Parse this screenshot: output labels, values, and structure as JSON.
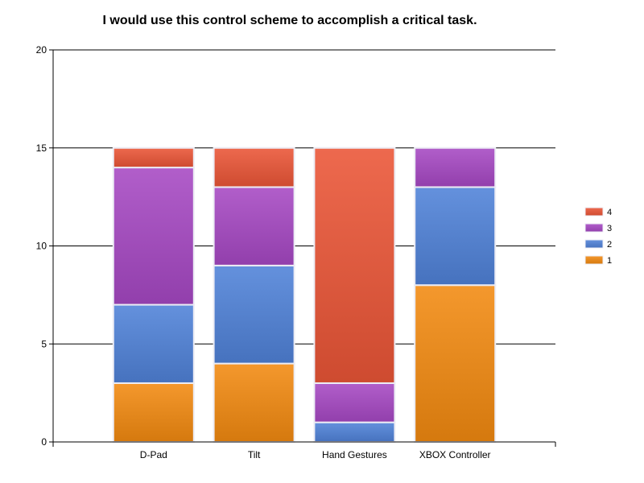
{
  "chart_data": {
    "type": "bar",
    "stacked": true,
    "title": "I would use this control scheme to accomplish a critical task.",
    "xlabel": "",
    "ylabel": "",
    "categories": [
      "D-Pad",
      "Tilt",
      "Hand Gestures",
      "XBOX Controller"
    ],
    "ylim": [
      0,
      20
    ],
    "yticks": [
      0,
      5,
      10,
      15,
      20
    ],
    "grid": true,
    "legend_position": "right",
    "series": [
      {
        "name": "1",
        "color": "#f28a10",
        "values": [
          3,
          4,
          0,
          8
        ]
      },
      {
        "name": "2",
        "color": "#4f82d8",
        "values": [
          4,
          5,
          1,
          5
        ]
      },
      {
        "name": "3",
        "color": "#a648c3",
        "values": [
          7,
          4,
          2,
          2
        ]
      },
      {
        "name": "4",
        "color": "#ea5536",
        "values": [
          1,
          2,
          12,
          0
        ]
      }
    ]
  }
}
